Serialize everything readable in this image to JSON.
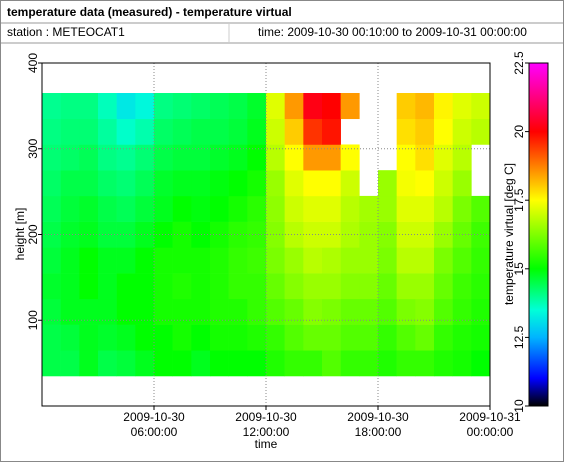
{
  "chart_data": {
    "type": "heatmap",
    "title": "temperature data (measured) - temperature virtual",
    "station": "station : METEOCAT1",
    "period": "time: 2009-10-30 00:10:00 to 2009-10-31 00:00:00",
    "xlabel": "time",
    "ylabel": "height [m]",
    "colorbar_label": "temperature virtual [deg C]",
    "xlim": [
      "2009-10-30 00:00:00",
      "2009-10-31 00:00:00"
    ],
    "xticks": [
      "2009-10-30 06:00:00",
      "2009-10-30 12:00:00",
      "2009-10-30 18:00:00",
      "2009-10-31 00:00:00"
    ],
    "ylim": [
      0,
      400
    ],
    "yticks": [
      100,
      200,
      300,
      400
    ],
    "grid": true,
    "clim": [
      10,
      22.5
    ],
    "cticks": [
      10,
      12.5,
      15,
      17.5,
      20,
      22.5
    ],
    "colorscale": [
      [
        10,
        "#000000"
      ],
      [
        11,
        "#0000ff"
      ],
      [
        12.5,
        "#00b4ff"
      ],
      [
        13.5,
        "#00ffd8"
      ],
      [
        15,
        "#00ff00"
      ],
      [
        17.5,
        "#ffff00"
      ],
      [
        20,
        "#ff0000"
      ],
      [
        22.5,
        "#ff00ff"
      ]
    ],
    "x_edges": [
      "2009-10-30 00:00:00",
      "2009-10-30 01:00:00",
      "2009-10-30 02:00:00",
      "2009-10-30 03:00:00",
      "2009-10-30 04:00:00",
      "2009-10-30 05:00:00",
      "2009-10-30 06:00:00",
      "2009-10-30 07:00:00",
      "2009-10-30 08:00:00",
      "2009-10-30 09:00:00",
      "2009-10-30 10:00:00",
      "2009-10-30 11:00:00",
      "2009-10-30 12:00:00",
      "2009-10-30 13:00:00",
      "2009-10-30 14:00:00",
      "2009-10-30 15:00:00",
      "2009-10-30 16:00:00",
      "2009-10-30 17:00:00",
      "2009-10-30 18:00:00",
      "2009-10-30 19:00:00",
      "2009-10-30 20:00:00",
      "2009-10-30 21:00:00",
      "2009-10-30 22:00:00",
      "2009-10-30 23:00:00",
      "2009-10-31 00:00:00"
    ],
    "y_edges": [
      35,
      65,
      95,
      125,
      155,
      185,
      215,
      245,
      275,
      305,
      335,
      365
    ],
    "values": [
      [
        14.5,
        14.5,
        14.8,
        14.5,
        14.6,
        14.8,
        15,
        15,
        14.8,
        15,
        15,
        15,
        15.3,
        15.5,
        15.5,
        15.8,
        15.5,
        15.5,
        15.3,
        15.5,
        15.5,
        15.3,
        15.2,
        15
      ],
      [
        14.5,
        14.6,
        14.8,
        14.7,
        14.8,
        15,
        15,
        15.2,
        15,
        15.2,
        15.2,
        15.3,
        15.5,
        15.8,
        16,
        16,
        15.8,
        15.8,
        15.5,
        15.8,
        16,
        15.5,
        15.3,
        15.2
      ],
      [
        14.6,
        14.8,
        14.8,
        14.8,
        15,
        15,
        15.2,
        15.2,
        15.2,
        15.3,
        15.3,
        15.5,
        15.8,
        16,
        16.3,
        16.2,
        16,
        16,
        15.8,
        16.2,
        16.3,
        15.8,
        15.5,
        15.3
      ],
      [
        14.7,
        14.8,
        15,
        14.8,
        15,
        15,
        15.2,
        15.3,
        15.2,
        15.3,
        15.5,
        15.5,
        16,
        16.3,
        16.5,
        16.5,
        16.3,
        16.3,
        16,
        16.5,
        16.5,
        16,
        15.6,
        15.4
      ],
      [
        14.6,
        14.8,
        15,
        14.8,
        14.8,
        15,
        15.2,
        15.2,
        15.2,
        15.3,
        15.5,
        15.6,
        16.2,
        16.5,
        16.8,
        16.7,
        16.5,
        16.5,
        16.2,
        16.8,
        16.8,
        16.2,
        15.8,
        15.5
      ],
      [
        14.5,
        14.7,
        14.8,
        14.6,
        14.6,
        14.8,
        15,
        15.2,
        15,
        15.2,
        15.4,
        15.5,
        16.3,
        16.8,
        17,
        17,
        16.7,
        16.5,
        16.3,
        17,
        17,
        16.5,
        16,
        15.6
      ],
      [
        14.4,
        14.6,
        14.7,
        14.5,
        14.4,
        14.6,
        14.8,
        15,
        14.9,
        15,
        15.2,
        15.4,
        16.4,
        17,
        17.2,
        17.2,
        16.8,
        16.6,
        16.5,
        17.2,
        17.2,
        16.8,
        16.2,
        15.8
      ],
      [
        14.3,
        14.5,
        14.5,
        14.3,
        14.2,
        14.4,
        14.7,
        14.8,
        14.8,
        14.9,
        15,
        15.2,
        16.5,
        17.2,
        17.5,
        17.5,
        17,
        null,
        16.5,
        17.4,
        17.5,
        17,
        16.5,
        null
      ],
      [
        14.2,
        14.3,
        14.4,
        14.1,
        14,
        14.2,
        14.5,
        14.6,
        14.6,
        14.7,
        14.8,
        15,
        16.8,
        17.5,
        18.5,
        18.5,
        17.5,
        null,
        null,
        17.5,
        17.8,
        17.2,
        16.8,
        null
      ],
      [
        14.1,
        14.2,
        14.2,
        13.9,
        13.6,
        13.8,
        14.3,
        14.4,
        14.5,
        14.5,
        14.6,
        14.8,
        17,
        18,
        19.5,
        19.8,
        null,
        null,
        null,
        17.8,
        18,
        17.5,
        17,
        16.8
      ],
      [
        14,
        14.1,
        14.1,
        13.7,
        13.2,
        13.4,
        14.1,
        14.2,
        14.3,
        14.4,
        14.5,
        14.7,
        17.2,
        18.5,
        20.2,
        20,
        18.5,
        null,
        null,
        18,
        18.2,
        17.6,
        17.2,
        17
      ]
    ]
  }
}
